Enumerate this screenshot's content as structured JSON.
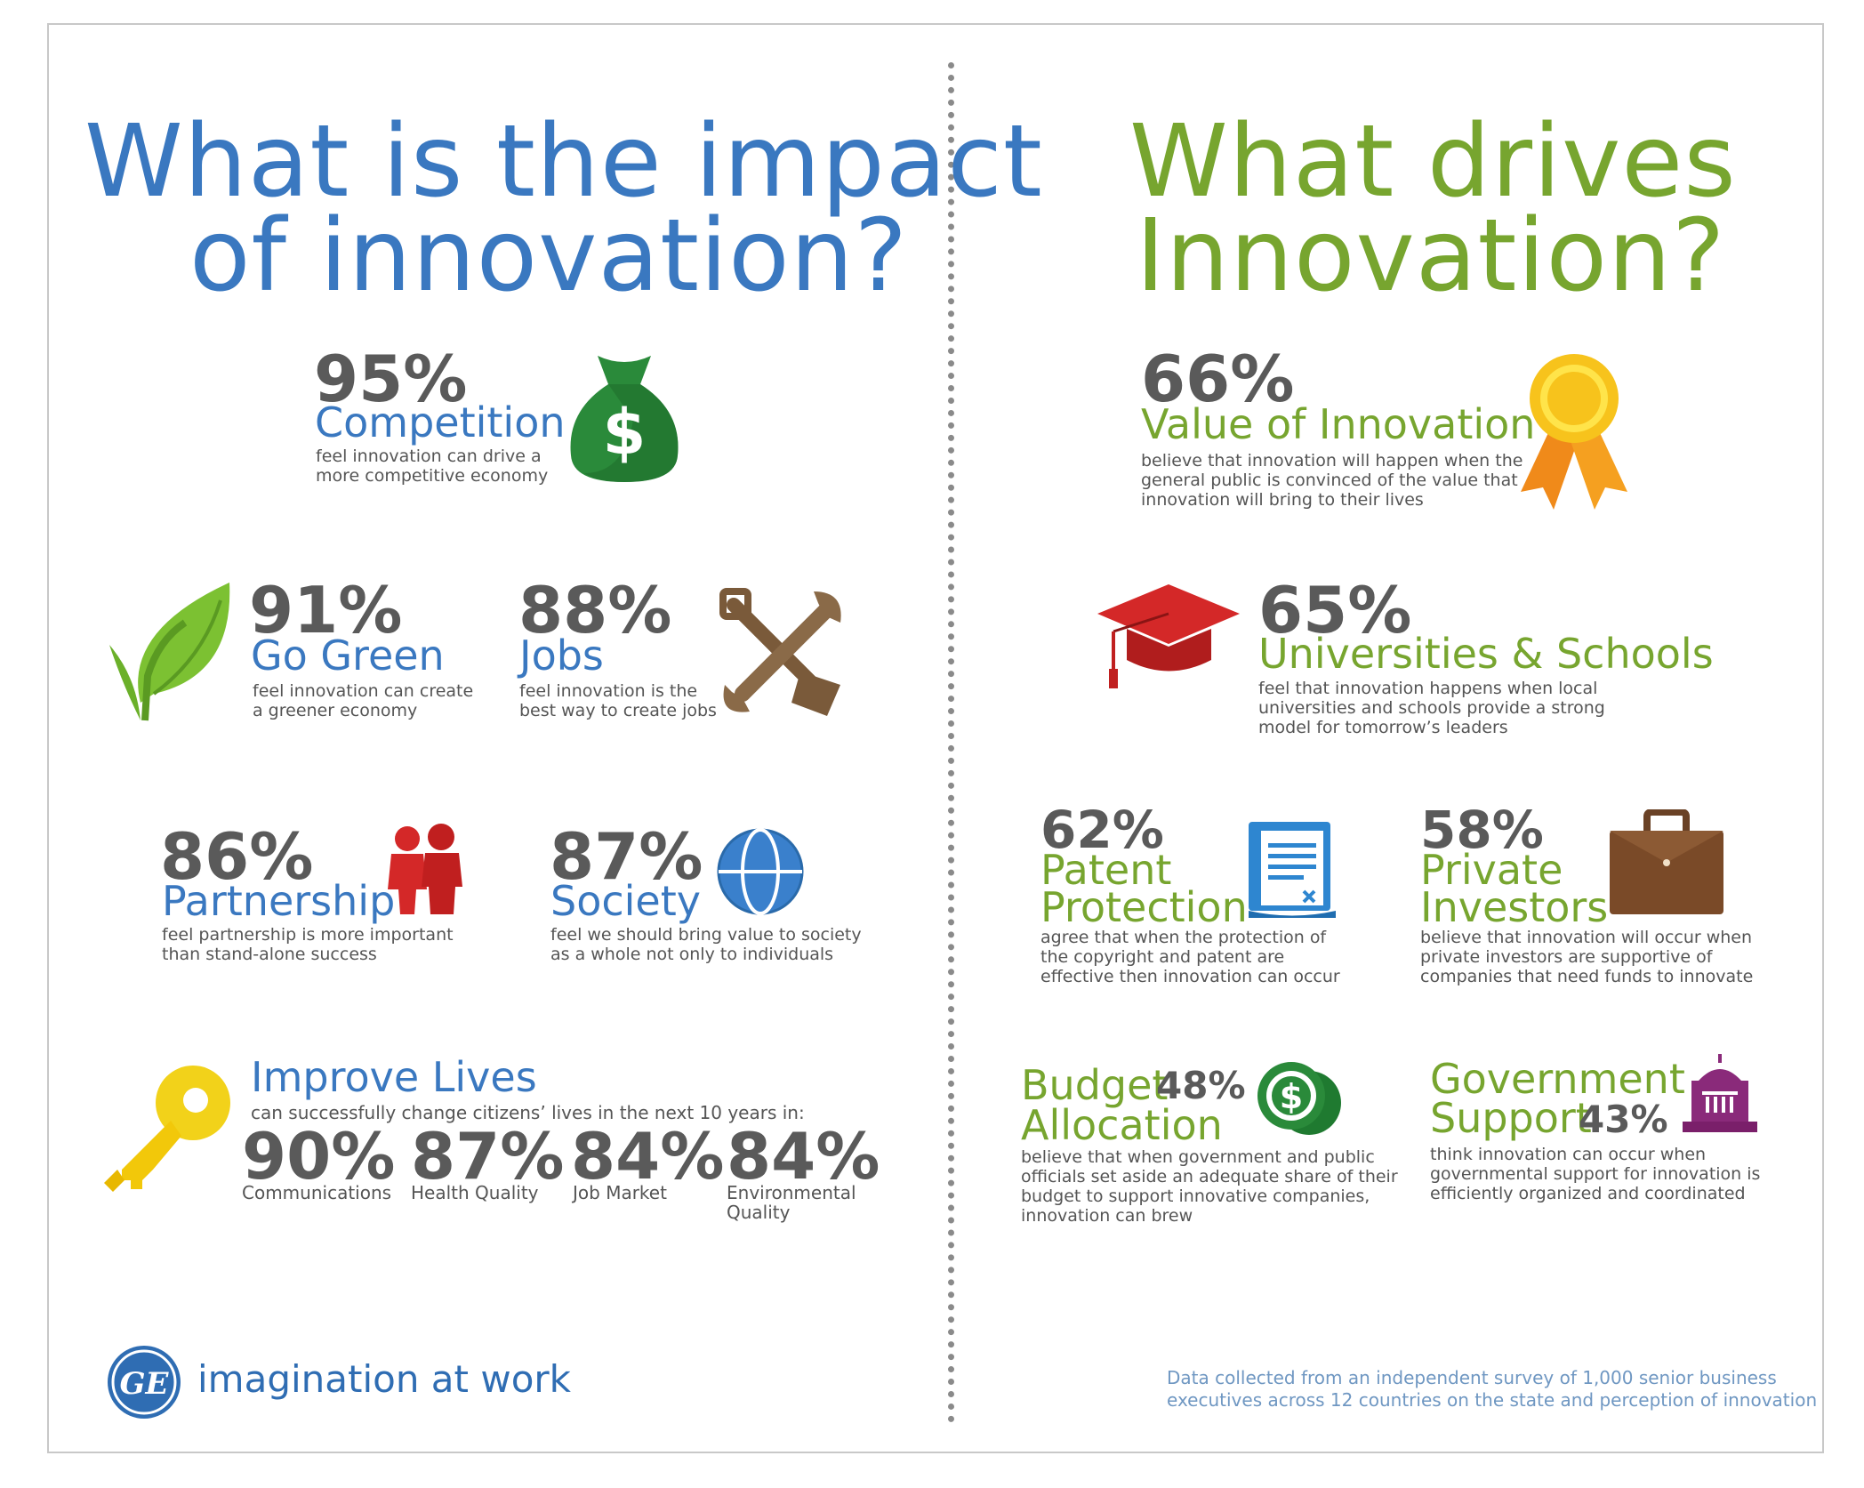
{
  "left": {
    "title_line1": "What is the impact",
    "title_line2": "of innovation?",
    "competition": {
      "pct": "95%",
      "label": "Competition",
      "desc1": "feel innovation can drive a",
      "desc2": "more competitive economy"
    },
    "green": {
      "pct": "91%",
      "label": "Go Green",
      "desc1": "feel innovation can create",
      "desc2": "a greener economy"
    },
    "jobs": {
      "pct": "88%",
      "label": "Jobs",
      "desc1": "feel innovation is the",
      "desc2": "best way to create jobs"
    },
    "partnership": {
      "pct": "86%",
      "label": "Partnership",
      "desc1": "feel partnership is more important",
      "desc2": "than stand-alone success"
    },
    "society": {
      "pct": "87%",
      "label": "Society",
      "desc1": "feel we should bring value to society",
      "desc2": "as a whole not only to individuals"
    },
    "lives": {
      "label": "Improve Lives",
      "desc": "can successfully change citizens’ lives in the next 10 years in:",
      "items": [
        {
          "pct": "90%",
          "name1": "Communications",
          "name2": ""
        },
        {
          "pct": "87%",
          "name1": "Health Quality",
          "name2": ""
        },
        {
          "pct": "84%",
          "name1": "Job  Market",
          "name2": ""
        },
        {
          "pct": "84%",
          "name1": "Environmental",
          "name2": "Quality"
        }
      ]
    },
    "brand": {
      "logo_text": "GE",
      "tagline": "imagination at work"
    }
  },
  "right": {
    "title_line1": "What drives",
    "title_line2": "Innovation?",
    "value": {
      "pct": "66%",
      "label": "Value of Innovation",
      "desc1": "believe that innovation will happen when the",
      "desc2": "general public is convinced of the value that",
      "desc3": "innovation will bring to their lives"
    },
    "universities": {
      "pct": "65%",
      "label": "Universities & Schools",
      "desc1": "feel that innovation happens when local",
      "desc2": "universities and schools provide a strong",
      "desc3": "model for tomorrow’s leaders"
    },
    "patent": {
      "pct": "62%",
      "label1": "Patent",
      "label2": "Protection",
      "desc1": "agree that when the protection of",
      "desc2": "the copyright and patent are",
      "desc3": "effective then innovation can occur"
    },
    "investors": {
      "pct": "58%",
      "label1": "Private",
      "label2": "Investors",
      "desc1": "believe that innovation will occur when",
      "desc2": "private investors are supportive of",
      "desc3": "companies that need funds to innovate"
    },
    "budget": {
      "pct": "48%",
      "label1": "Budget",
      "label2": "Allocation",
      "desc1": "believe that when government and public",
      "desc2": "officials set aside an adequate share of their",
      "desc3": "budget to support innovative companies,",
      "desc4": "innovation can brew"
    },
    "government": {
      "pct": "43%",
      "label1": "Government",
      "label2": "Support",
      "desc1": "think innovation can occur when",
      "desc2": "governmental support for innovation is",
      "desc3": "efficiently organized and coordinated"
    },
    "footnote1": "Data collected from an independent survey of 1,000 senior business",
    "footnote2": "executives across 12 countries on the state and perception of innovation"
  },
  "colors": {
    "blue": "#3a78c0",
    "green": "#77a52f",
    "gray": "#5a5a5a"
  }
}
